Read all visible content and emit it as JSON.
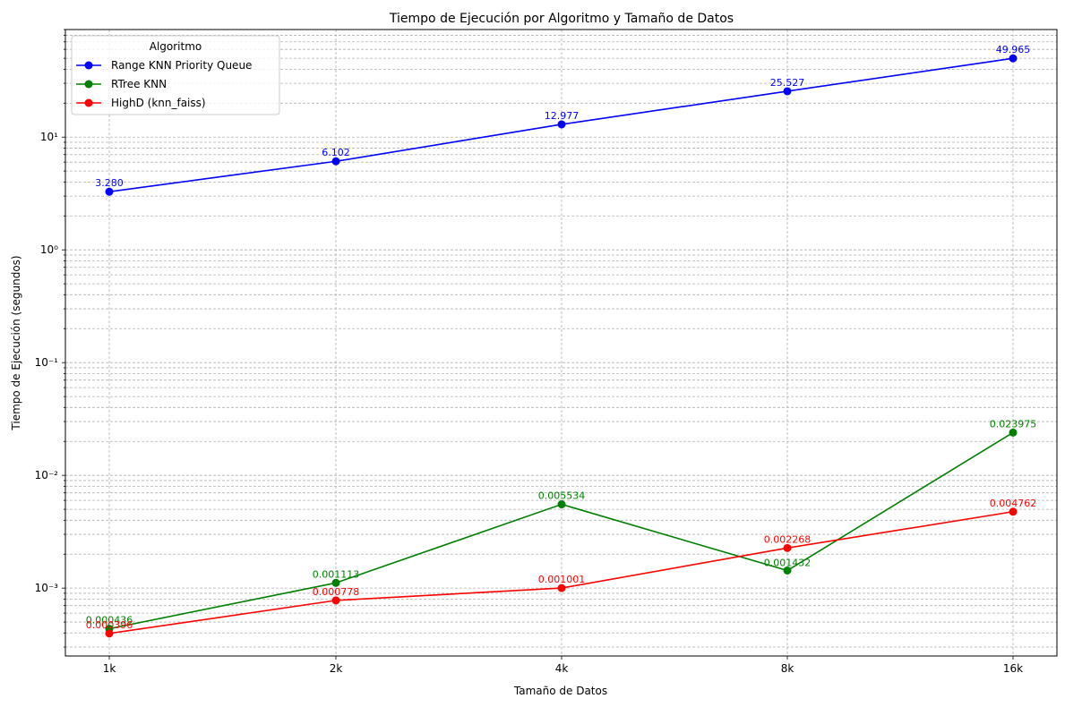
{
  "chart_data": {
    "type": "line",
    "title": "Tiempo de Ejecución por Algoritmo y Tamaño de Datos",
    "xlabel": "Tamaño de Datos",
    "ylabel": "Tiempo de Ejecución (segundos)",
    "categories": [
      "1k",
      "2k",
      "4k",
      "8k",
      "16k"
    ],
    "y_scale": "log",
    "ylim": [
      0.00025,
      90
    ],
    "y_ticks": [
      0.001,
      0.01,
      0.1,
      1,
      10
    ],
    "y_tick_labels": [
      "10⁻³",
      "10⁻²",
      "10⁻¹",
      "10⁰",
      "10¹"
    ],
    "grid": true,
    "legend": {
      "title": "Algoritmo",
      "placement": "top-left"
    },
    "series": [
      {
        "name": "Range KNN Priority Queue",
        "color": "#0000ff",
        "values": [
          3.28,
          6.102,
          12.977,
          25.527,
          49.965
        ],
        "labels": [
          "3.280",
          "6.102",
          "12.977",
          "25.527",
          "49.965"
        ]
      },
      {
        "name": "RTree KNN",
        "color": "#008000",
        "values": [
          0.000436,
          0.001113,
          0.005534,
          0.001432,
          0.023975
        ],
        "labels": [
          "0.000436",
          "0.001113",
          "0.005534",
          "0.001432",
          "0.023975"
        ]
      },
      {
        "name": "HighD (knn_faiss)",
        "color": "#ff0000",
        "values": [
          0.000396,
          0.000778,
          0.001001,
          0.002268,
          0.004762
        ],
        "labels": [
          "0.000396",
          "0.000778",
          "0.001001",
          "0.002268",
          "0.004762"
        ]
      }
    ]
  }
}
